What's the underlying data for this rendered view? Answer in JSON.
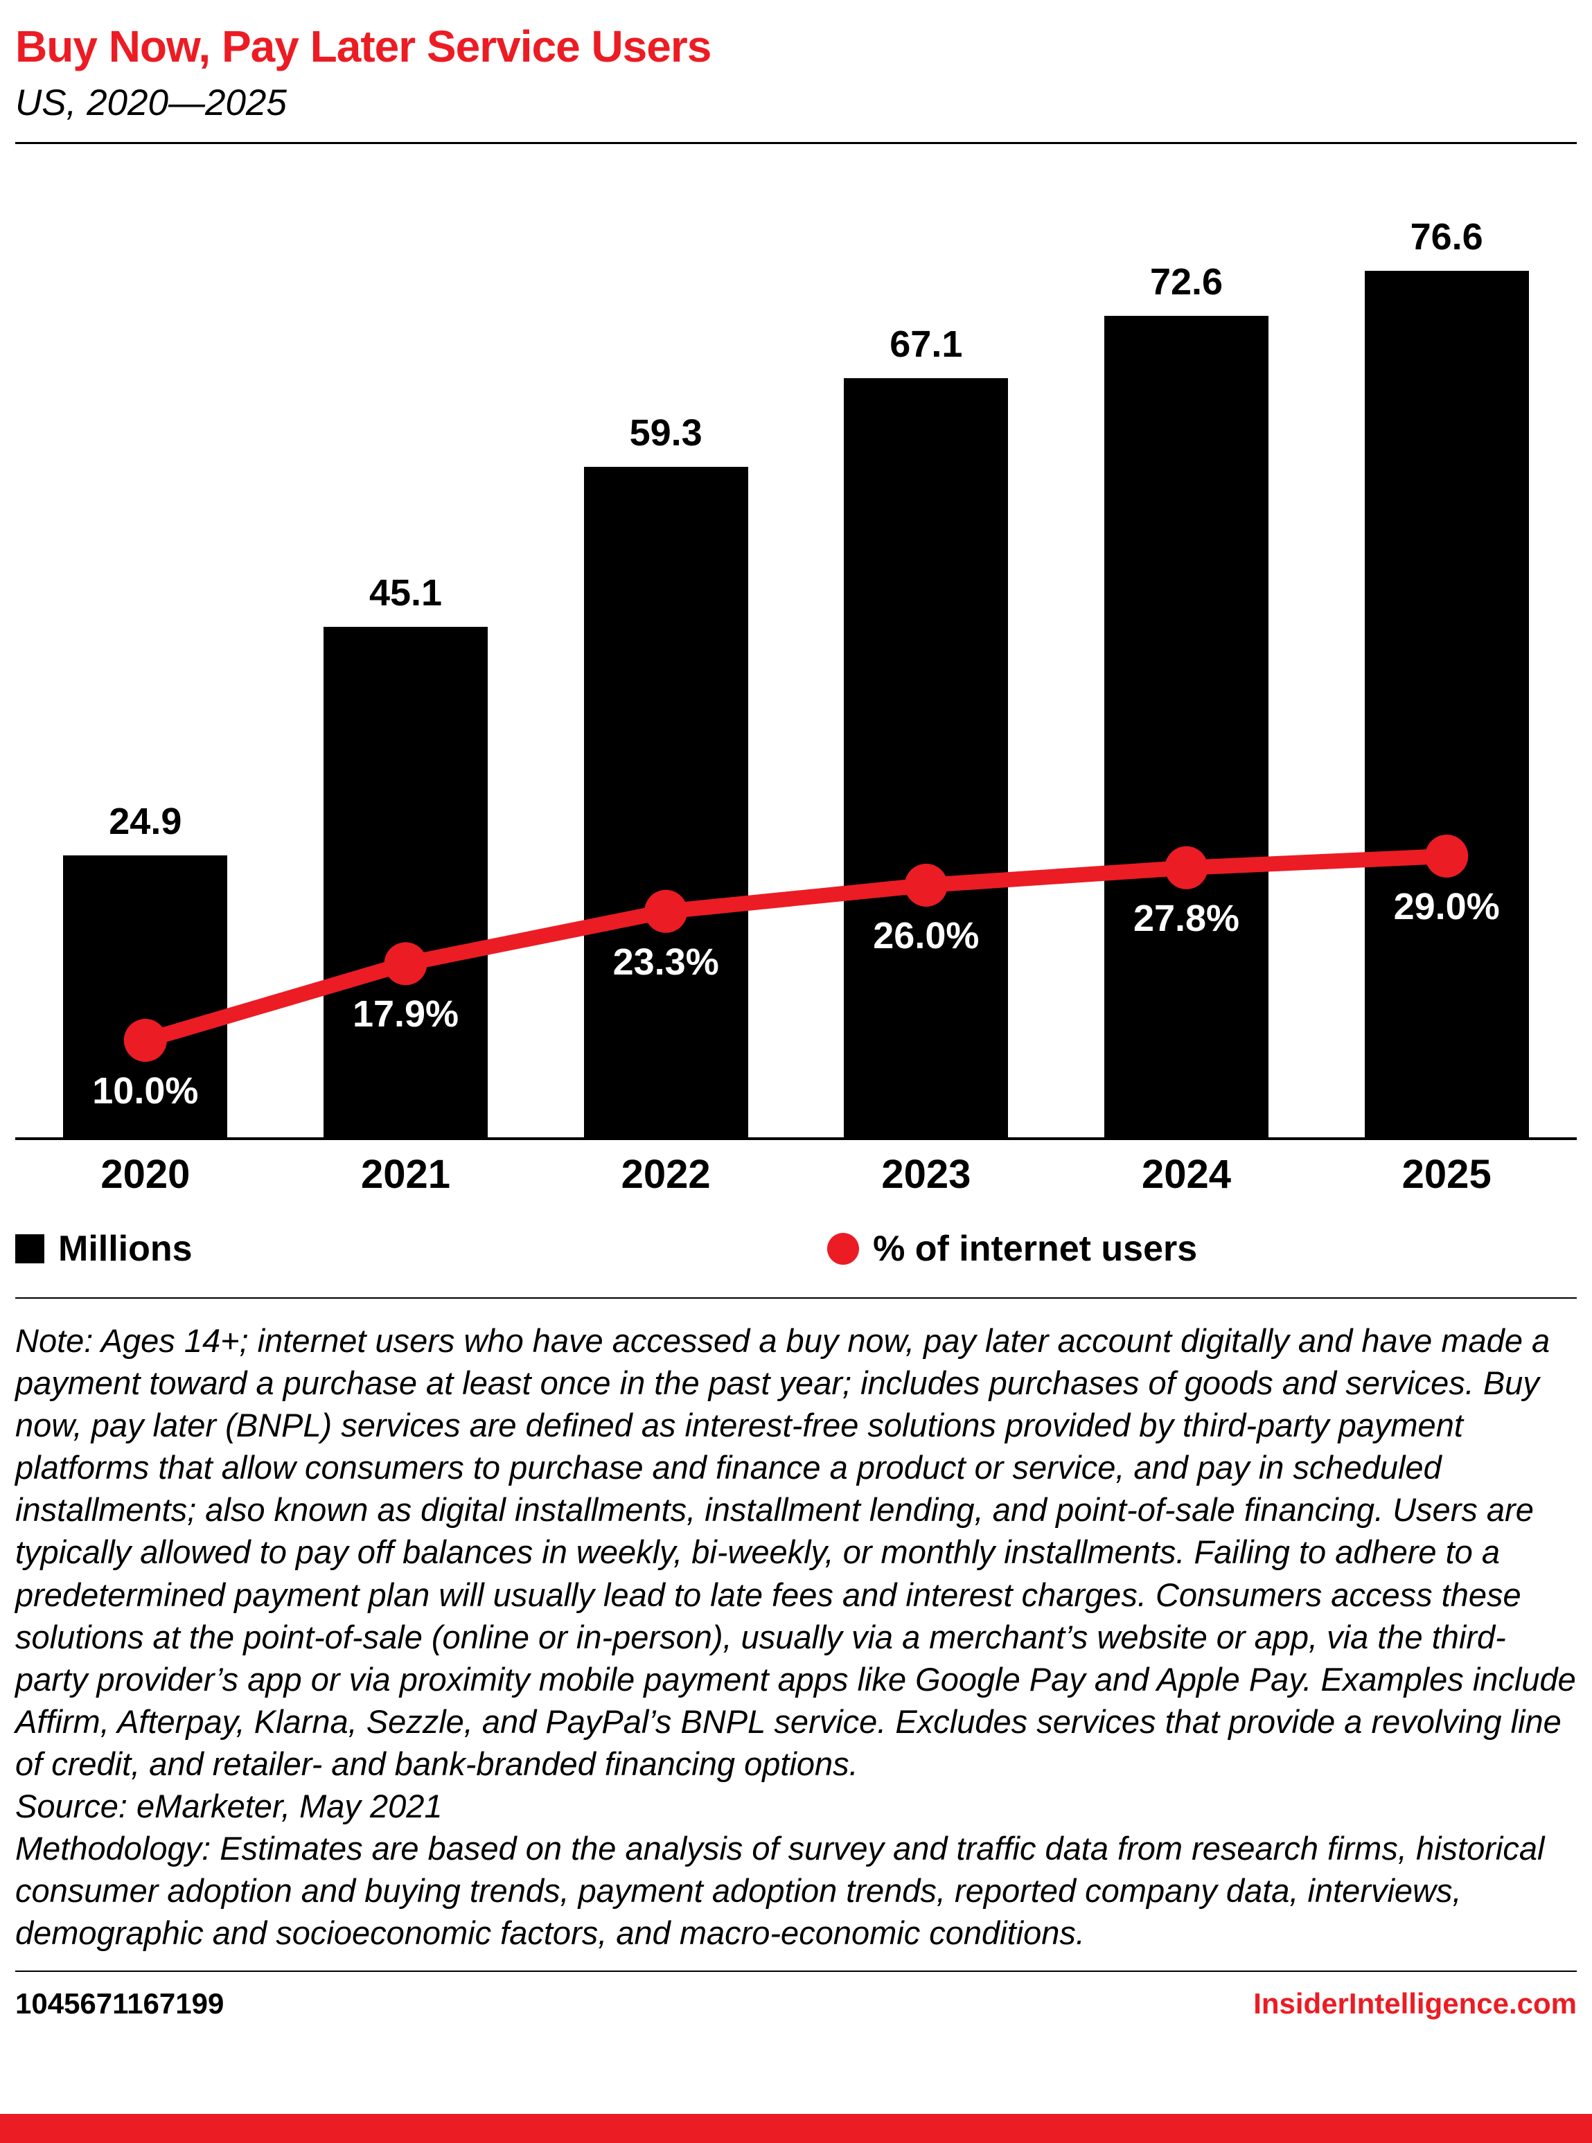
{
  "header": {
    "title": "Buy Now, Pay Later Service Users",
    "subtitle": "US, 2020—2025"
  },
  "chart_data": {
    "type": "bar",
    "title": "Buy Now, Pay Later Service Users",
    "subtitle": "US, 2020—2025",
    "categories": [
      "2020",
      "2021",
      "2022",
      "2023",
      "2024",
      "2025"
    ],
    "series": [
      {
        "name": "Millions",
        "type": "bar",
        "values": [
          24.9,
          45.1,
          59.3,
          67.1,
          72.6,
          76.6
        ],
        "value_labels": [
          "24.9",
          "45.1",
          "59.3",
          "67.1",
          "72.6",
          "76.6"
        ],
        "color": "#000000"
      },
      {
        "name": "% of internet users",
        "type": "line",
        "values": [
          10.0,
          17.9,
          23.3,
          26.0,
          27.8,
          29.0
        ],
        "value_labels": [
          "10.0%",
          "17.9%",
          "23.3%",
          "26.0%",
          "27.8%",
          "29.0%"
        ],
        "color": "#ec1c24"
      }
    ],
    "xlabel": "",
    "ylabel": "",
    "ylim_bars": [
      0,
      85
    ],
    "ylim_line_pct": [
      0,
      100
    ],
    "grid": false,
    "legend_position": "bottom"
  },
  "legend": [
    {
      "label": "Millions",
      "swatch": "square",
      "color": "#000000"
    },
    {
      "label": "% of internet users",
      "swatch": "circle",
      "color": "#ec1c24"
    }
  ],
  "notes": {
    "note": "Note: Ages 14+; internet users who have accessed a buy now, pay later account digitally and have made a payment toward a purchase at least once in the past year; includes purchases of goods and services. Buy now, pay later (BNPL) services are defined as interest-free solutions provided by third-party payment platforms that allow consumers to purchase and finance a product or service, and pay in scheduled installments; also known as digital installments, installment lending, and point-of-sale financing. Users are typically allowed to pay off balances in weekly, bi-weekly, or monthly installments. Failing to adhere to a predetermined payment plan will usually lead to late fees and interest charges. Consumers access these solutions at the point-of-sale (online or in-person), usually via a merchant’s website or app, via the third-party provider’s app or via proximity mobile payment apps like Google Pay and Apple Pay. Examples include Affirm, Afterpay, Klarna, Sezzle, and PayPal’s BNPL service. Excludes services that provide a revolving line of credit, and retailer- and bank-branded financing options.",
    "source": "Source: eMarketer, May 2021",
    "methodology": "Methodology: Estimates are based on the analysis of survey and traffic data from research firms, historical consumer adoption and buying trends, payment adoption trends, reported company data, interviews, demographic and socioeconomic factors, and macro-economic conditions."
  },
  "footer": {
    "id": "1045671167199",
    "site": "InsiderIntelligence.com"
  },
  "colors": {
    "accent_red": "#ec1c24",
    "bar_black": "#000000"
  }
}
